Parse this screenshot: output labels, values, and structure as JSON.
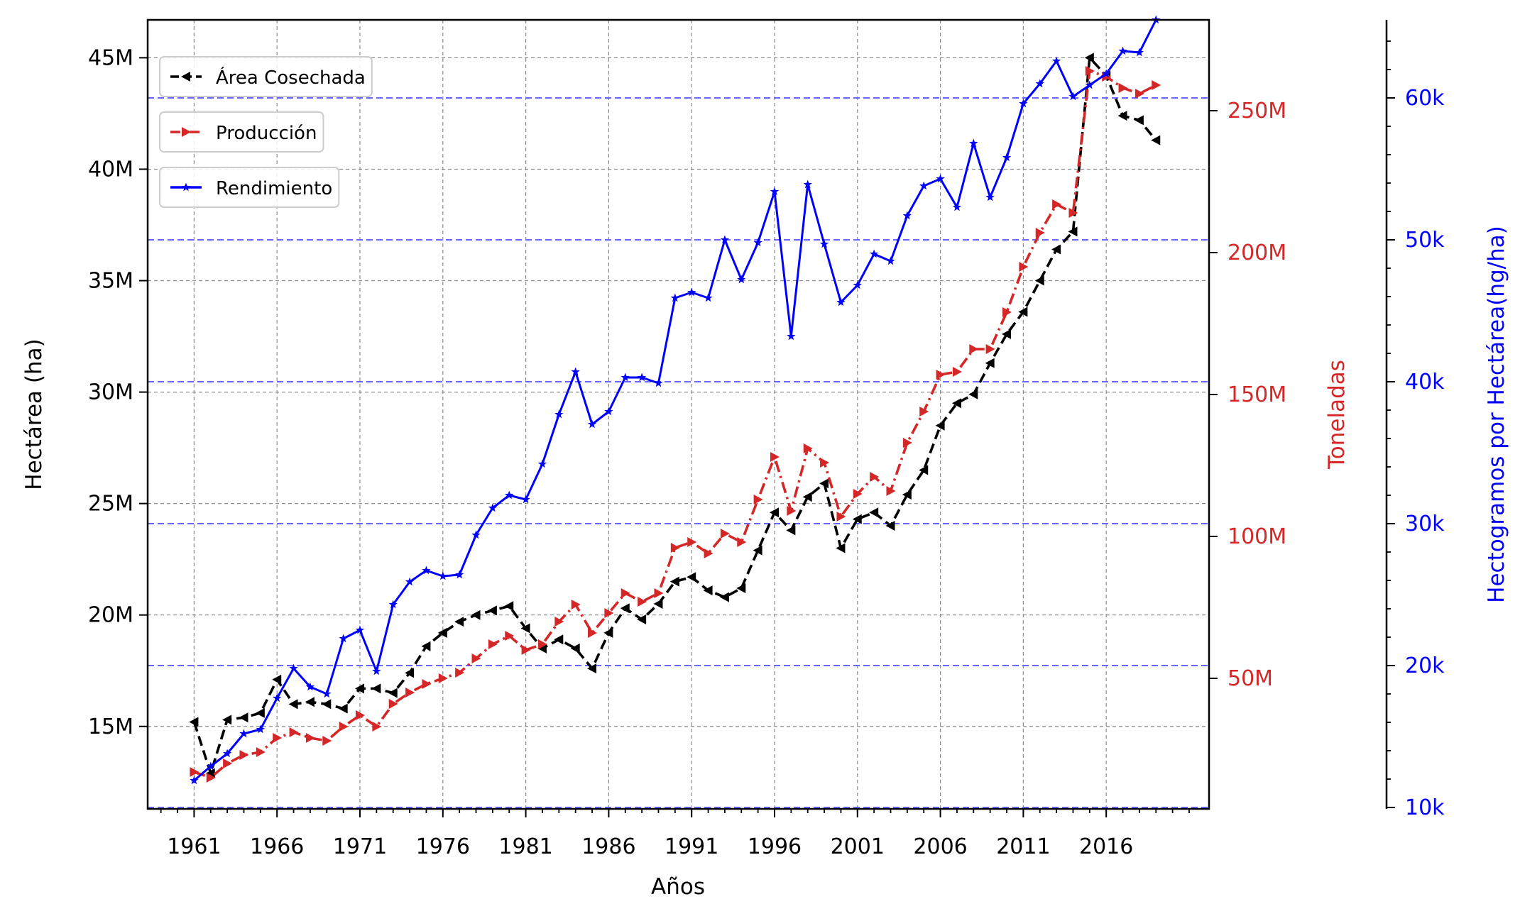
{
  "chart_data": {
    "type": "line",
    "xlabel": "Años",
    "ylabel_left": "Hectárea (ha)",
    "ylabel_right1": "Toneladas",
    "ylabel_right2": "Hectogramos por Hectárea(hg/ha)",
    "x_ticks": [
      "1961",
      "1966",
      "1971",
      "1976",
      "1981",
      "1986",
      "1991",
      "1996",
      "2001",
      "2006",
      "2011",
      "2016"
    ],
    "x": [
      1961,
      1962,
      1963,
      1964,
      1965,
      1966,
      1967,
      1968,
      1969,
      1970,
      1971,
      1972,
      1973,
      1974,
      1975,
      1976,
      1977,
      1978,
      1979,
      1980,
      1981,
      1982,
      1983,
      1984,
      1985,
      1986,
      1987,
      1988,
      1989,
      1990,
      1991,
      1992,
      1993,
      1994,
      1995,
      1996,
      1997,
      1998,
      1999,
      2000,
      2001,
      2002,
      2003,
      2004,
      2005,
      2006,
      2007,
      2008,
      2009,
      2010,
      2011,
      2012,
      2013,
      2014,
      2015,
      2016,
      2017,
      2018,
      2019
    ],
    "axes": {
      "left": {
        "ylim": [
          11.3,
          46.7
        ],
        "tick_values": [
          15,
          20,
          25,
          30,
          35,
          40,
          45
        ],
        "tick_labels": [
          "15M",
          "20M",
          "25M",
          "30M",
          "35M",
          "40M",
          "45M"
        ],
        "color": "#000000"
      },
      "right1": {
        "ylim": [
          4,
          282
        ],
        "tick_values": [
          50,
          100,
          150,
          200,
          250
        ],
        "tick_labels": [
          "50M",
          "100M",
          "150M",
          "200M",
          "250M"
        ],
        "color": "#d62728"
      },
      "right2": {
        "ylim": [
          9.9,
          65.5
        ],
        "tick_values": [
          10,
          20,
          30,
          40,
          50,
          60
        ],
        "tick_labels": [
          "10k",
          "20k",
          "30k",
          "40k",
          "50k",
          "60k"
        ],
        "color": "#0000ff"
      }
    },
    "legend_position": "top-left",
    "grid": true,
    "series": [
      {
        "name": "Área Cosechada",
        "axis": "left",
        "unit": "M ha",
        "color": "#000000",
        "linestyle": "dashed",
        "marker": "triangle-left",
        "values": [
          15.2,
          12.9,
          15.3,
          15.4,
          15.6,
          17.1,
          16.0,
          16.1,
          16.0,
          15.8,
          16.7,
          16.7,
          16.5,
          17.4,
          18.6,
          19.2,
          19.7,
          20.0,
          20.2,
          20.4,
          19.4,
          18.5,
          18.9,
          18.5,
          17.6,
          19.2,
          20.3,
          19.8,
          20.5,
          21.5,
          21.7,
          21.1,
          20.8,
          21.2,
          22.9,
          24.6,
          23.8,
          25.3,
          25.9,
          23.0,
          24.3,
          24.6,
          24.0,
          25.4,
          26.5,
          28.5,
          29.5,
          29.9,
          31.3,
          32.6,
          33.6,
          35.0,
          36.4,
          37.2,
          45.0,
          44.2,
          42.4,
          42.2,
          41.3
        ]
      },
      {
        "name": "Producción",
        "axis": "right1",
        "unit": "M t",
        "color": "#d62728",
        "linestyle": "dashdot",
        "marker": "triangle-right",
        "values": [
          17,
          15,
          20,
          23,
          24,
          29,
          31,
          29,
          28,
          33,
          37,
          33,
          41,
          45,
          48,
          50,
          52,
          57,
          62,
          65,
          60,
          62,
          70,
          76,
          66,
          73,
          80,
          77,
          80,
          96,
          98,
          94,
          101,
          98,
          113,
          128,
          109,
          131,
          126,
          107,
          115,
          121,
          116,
          133,
          144,
          157,
          158,
          166,
          166,
          179,
          195,
          207,
          217,
          214,
          264,
          262,
          258,
          256,
          259
        ]
      },
      {
        "name": "Rendimiento",
        "axis": "right2",
        "unit": "k hg/ha",
        "color": "#0000ff",
        "linestyle": "solid",
        "marker": "star",
        "values": [
          11.9,
          12.9,
          13.8,
          15.2,
          15.5,
          17.7,
          19.8,
          18.5,
          18.0,
          21.9,
          22.5,
          19.6,
          24.3,
          25.9,
          26.7,
          26.3,
          26.4,
          29.2,
          31.1,
          32.0,
          31.7,
          34.2,
          37.7,
          40.7,
          37.0,
          37.9,
          40.3,
          40.3,
          39.9,
          45.9,
          46.3,
          45.9,
          50.0,
          47.2,
          49.8,
          53.4,
          43.2,
          53.9,
          49.7,
          45.6,
          46.8,
          49.0,
          48.5,
          51.7,
          53.8,
          54.3,
          52.3,
          56.8,
          53.0,
          55.8,
          59.6,
          61.0,
          62.6,
          60.1,
          60.9,
          61.7,
          63.3,
          63.2,
          65.5
        ]
      }
    ]
  }
}
